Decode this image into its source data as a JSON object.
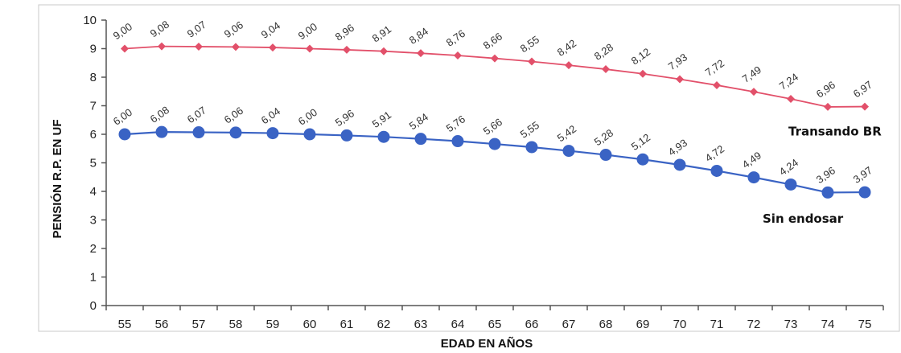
{
  "chart_data": {
    "type": "line",
    "title": "",
    "xlabel": "EDAD EN AÑOS",
    "ylabel": "PENSIÓN R.P. EN UF",
    "x": [
      55,
      56,
      57,
      58,
      59,
      60,
      61,
      62,
      63,
      64,
      65,
      66,
      67,
      68,
      69,
      70,
      71,
      72,
      73,
      74,
      75
    ],
    "xlim": [
      54.5,
      75.5
    ],
    "ylim": [
      0,
      10
    ],
    "yticks": [
      0,
      1,
      2,
      3,
      4,
      5,
      6,
      7,
      8,
      9,
      10
    ],
    "grid": false,
    "legend": "inline labels at right end of each series",
    "series": [
      {
        "name": "Transando BR",
        "color": "#e2506a",
        "marker": "diamond",
        "values": [
          9.0,
          9.08,
          9.07,
          9.06,
          9.04,
          9.0,
          8.96,
          8.91,
          8.84,
          8.76,
          8.66,
          8.55,
          8.42,
          8.28,
          8.12,
          7.93,
          7.72,
          7.49,
          7.24,
          6.96,
          6.97
        ],
        "labels": [
          "9,00",
          "9,08",
          "9,07",
          "9,06",
          "9,04",
          "9,00",
          "8,96",
          "8,91",
          "8,84",
          "8,76",
          "8,66",
          "8,55",
          "8,42",
          "8,28",
          "8,12",
          "7,93",
          "7,72",
          "7,49",
          "7,24",
          "6,96",
          "6,97"
        ]
      },
      {
        "name": "Sin endosar",
        "color": "#3a63c4",
        "marker": "circle",
        "values": [
          6.0,
          6.08,
          6.07,
          6.06,
          6.04,
          6.0,
          5.96,
          5.91,
          5.84,
          5.76,
          5.66,
          5.55,
          5.42,
          5.28,
          5.12,
          4.93,
          4.72,
          4.49,
          4.24,
          3.96,
          3.97
        ],
        "labels": [
          "6,00",
          "6,08",
          "6,07",
          "6,06",
          "6,04",
          "6,00",
          "5,96",
          "5,91",
          "5,84",
          "5,76",
          "5,66",
          "5,55",
          "5,42",
          "5,28",
          "5,12",
          "4,93",
          "4,72",
          "4,49",
          "4,24",
          "3,96",
          "3,97"
        ]
      }
    ]
  }
}
